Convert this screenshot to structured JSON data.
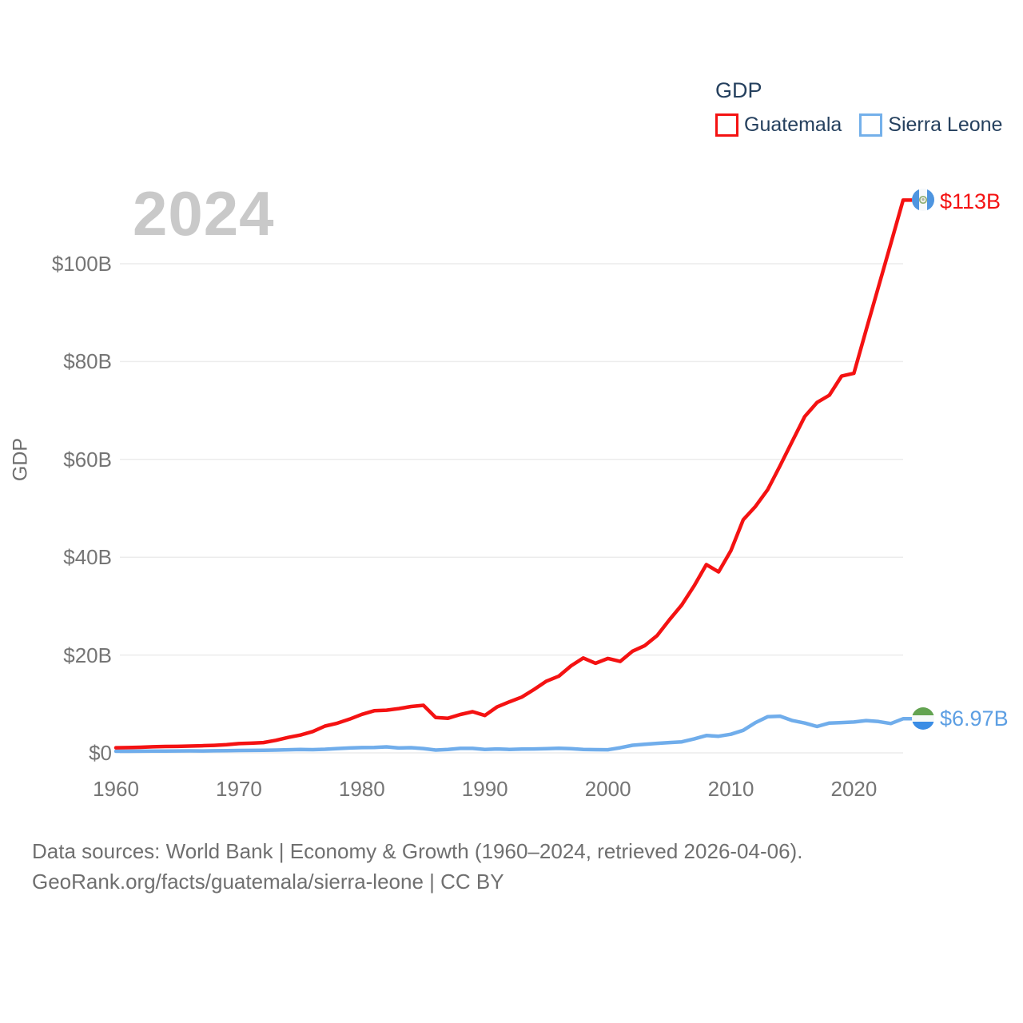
{
  "meta": {
    "year_label": "2024"
  },
  "legend": {
    "title": "GDP",
    "items": [
      {
        "label": "Guatemala",
        "color": "#f41212"
      },
      {
        "label": "Sierra Leone",
        "color": "#74b0ea"
      }
    ]
  },
  "axes": {
    "y_label": "GDP",
    "y_ticks": [
      "$0",
      "$20B",
      "$40B",
      "$60B",
      "$80B",
      "$100B"
    ],
    "x_ticks": [
      "1960",
      "1970",
      "1980",
      "1990",
      "2000",
      "2010",
      "2020"
    ]
  },
  "end_labels": [
    {
      "series": "Guatemala",
      "value": "$113B",
      "icon": "guatemala-flag-icon",
      "color": "#f41212"
    },
    {
      "series": "Sierra Leone",
      "value": "$6.97B",
      "icon": "sierra-leone-flag-icon",
      "color": "#5d9fe3"
    }
  ],
  "footer": {
    "line1": "Data sources: World Bank | Economy & Growth (1960–2024, retrieved 2026-04-06).",
    "line2": "GeoRank.org/facts/guatemala/sierra-leone | CC BY"
  },
  "colors": {
    "guatemala_line": "#f41212",
    "sierra_leone_line": "#70adeb",
    "legend_text": "#25405e",
    "tick_text": "#757575",
    "watermark": "#c9c9c9",
    "footer_text": "#6f6f6f",
    "grid": "#ececec"
  },
  "chart_data": {
    "type": "line",
    "title": "GDP",
    "xlabel": "",
    "ylabel": "GDP",
    "ylim": [
      0,
      115
    ],
    "grid": "horizontal",
    "legend_position": "top-right",
    "x_tick_years": [
      1960,
      1970,
      1980,
      1990,
      2000,
      2010,
      2020
    ],
    "y_tick_values": [
      0,
      20,
      40,
      60,
      80,
      100
    ],
    "x": [
      1960,
      1961,
      1962,
      1963,
      1964,
      1965,
      1966,
      1967,
      1968,
      1969,
      1970,
      1971,
      1972,
      1973,
      1974,
      1975,
      1976,
      1977,
      1978,
      1979,
      1980,
      1981,
      1982,
      1983,
      1984,
      1985,
      1986,
      1987,
      1988,
      1989,
      1990,
      1991,
      1992,
      1993,
      1994,
      1995,
      1996,
      1997,
      1998,
      1999,
      2000,
      2001,
      2002,
      2003,
      2004,
      2005,
      2006,
      2007,
      2008,
      2009,
      2010,
      2011,
      2012,
      2013,
      2014,
      2015,
      2016,
      2017,
      2018,
      2019,
      2020,
      2021,
      2022,
      2023,
      2024
    ],
    "series": [
      {
        "name": "Guatemala",
        "color": "#f41212",
        "unit": "billion USD",
        "end_value_label": "$113B",
        "values": [
          1.04,
          1.08,
          1.14,
          1.24,
          1.3,
          1.33,
          1.39,
          1.45,
          1.53,
          1.66,
          1.9,
          1.98,
          2.1,
          2.57,
          3.16,
          3.65,
          4.37,
          5.48,
          6.07,
          6.9,
          7.88,
          8.61,
          8.72,
          9.05,
          9.47,
          9.72,
          7.23,
          7.08,
          7.84,
          8.41,
          7.65,
          9.41,
          10.44,
          11.4,
          12.98,
          14.66,
          15.67,
          17.79,
          19.4,
          18.32,
          19.29,
          18.7,
          20.78,
          21.92,
          23.97,
          27.21,
          30.23,
          34.11,
          38.5,
          37.0,
          41.34,
          47.65,
          50.39,
          53.85,
          58.72,
          63.77,
          68.76,
          71.64,
          73.12,
          77.02,
          77.6,
          86.5,
          95.3,
          104.1,
          113.0
        ]
      },
      {
        "name": "Sierra Leone",
        "color": "#70adeb",
        "unit": "billion USD",
        "end_value_label": "$6.97B",
        "values": [
          0.32,
          0.33,
          0.35,
          0.36,
          0.38,
          0.4,
          0.41,
          0.4,
          0.42,
          0.46,
          0.49,
          0.5,
          0.53,
          0.57,
          0.63,
          0.68,
          0.66,
          0.74,
          0.88,
          1.0,
          1.08,
          1.1,
          1.22,
          1.0,
          1.07,
          0.88,
          0.58,
          0.68,
          0.92,
          0.92,
          0.68,
          0.8,
          0.7,
          0.76,
          0.8,
          0.86,
          0.94,
          0.85,
          0.7,
          0.66,
          0.64,
          1.05,
          1.55,
          1.75,
          1.95,
          2.1,
          2.25,
          2.85,
          3.55,
          3.4,
          3.8,
          4.6,
          6.2,
          7.4,
          7.5,
          6.6,
          6.1,
          5.4,
          6.1,
          6.2,
          6.3,
          6.6,
          6.4,
          6.0,
          6.97
        ]
      }
    ]
  }
}
